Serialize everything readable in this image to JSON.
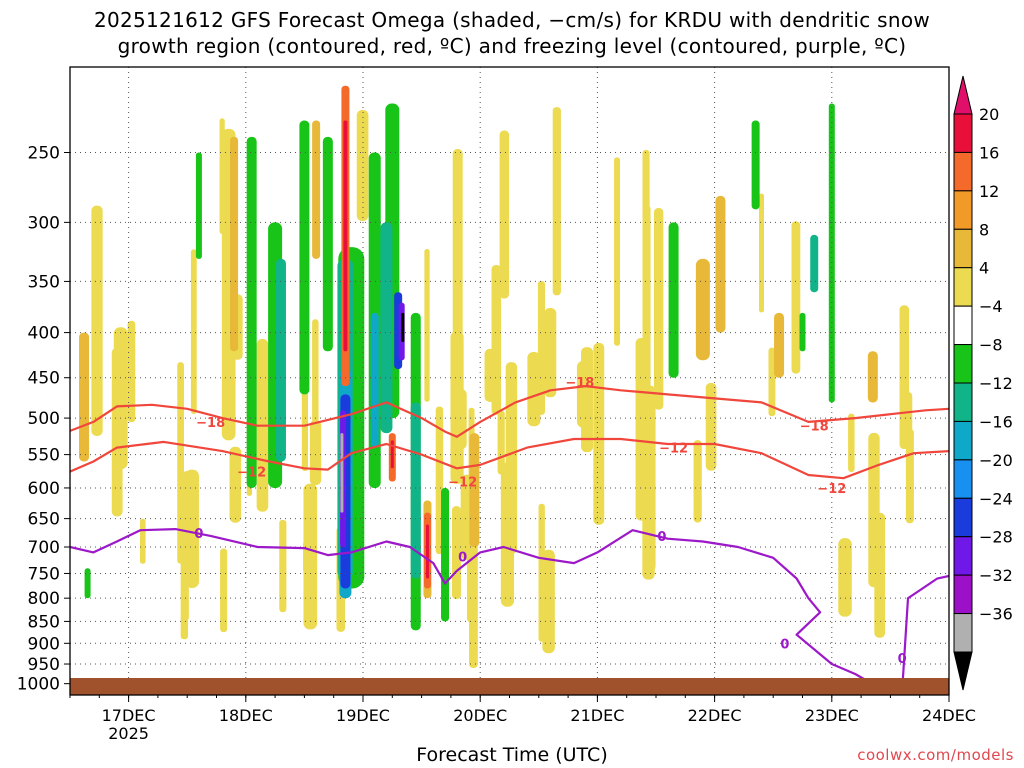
{
  "title_line1": "2025121612 GFS Forecast Omega (shaded, −cm/s) for KRDU with dendritic snow",
  "title_line2": "growth region (contoured, red, ºC) and freezing level (contoured, purple, ºC)",
  "credit": "coolwx.com/models",
  "chart_data": {
    "type": "heatmap",
    "xlabel": "Forecast Time (UTC)",
    "x_ticks": [
      "17DEC",
      "18DEC",
      "19DEC",
      "20DEC",
      "21DEC",
      "22DEC",
      "23DEC",
      "24DEC"
    ],
    "x_year_label": "2025",
    "x_range_days": [
      16.5,
      24.0
    ],
    "y_ticks": [
      250,
      300,
      350,
      400,
      450,
      500,
      550,
      600,
      650,
      700,
      750,
      800,
      850,
      900,
      950,
      1000
    ],
    "y_range_hpa": [
      200,
      1030
    ],
    "colorbar": {
      "labels": [
        "20",
        "16",
        "12",
        "8",
        "4",
        "−4",
        "−8",
        "−12",
        "−16",
        "−20",
        "−24",
        "−28",
        "−32",
        "−36"
      ],
      "colors": [
        "#e8103a",
        "#f36a2a",
        "#f29a28",
        "#e8b838",
        "#ecda50",
        "#ffffff",
        "#18c418",
        "#10b488",
        "#10a8c8",
        "#1890f0",
        "#1a3cdc",
        "#7018e8",
        "#9c10c8",
        "#b0b0b0"
      ],
      "top_arrow_color": "#e0106a",
      "bottom_arrow_color": "#000000"
    },
    "contours": {
      "red_minus18": {
        "label": "−18",
        "color": "#f0463c",
        "points": [
          [
            16.5,
            517
          ],
          [
            16.7,
            505
          ],
          [
            16.9,
            485
          ],
          [
            17.2,
            483
          ],
          [
            17.5,
            488
          ],
          [
            17.8,
            500
          ],
          [
            18.1,
            510
          ],
          [
            18.5,
            510
          ],
          [
            18.9,
            495
          ],
          [
            19.2,
            480
          ],
          [
            19.5,
            500
          ],
          [
            19.7,
            518
          ],
          [
            19.8,
            525
          ],
          [
            20.0,
            505
          ],
          [
            20.3,
            480
          ],
          [
            20.6,
            465
          ],
          [
            20.9,
            460
          ],
          [
            21.2,
            465
          ],
          [
            21.6,
            470
          ],
          [
            22.0,
            475
          ],
          [
            22.4,
            480
          ],
          [
            22.8,
            505
          ],
          [
            23.2,
            500
          ],
          [
            23.5,
            495
          ],
          [
            23.8,
            490
          ],
          [
            24.0,
            488
          ]
        ]
      },
      "red_minus12": {
        "label": "−12",
        "color": "#f0463c",
        "points": [
          [
            16.5,
            575
          ],
          [
            16.7,
            560
          ],
          [
            16.9,
            540
          ],
          [
            17.3,
            532
          ],
          [
            17.8,
            545
          ],
          [
            18.2,
            560
          ],
          [
            18.5,
            570
          ],
          [
            18.7,
            572
          ],
          [
            18.9,
            548
          ],
          [
            19.2,
            535
          ],
          [
            19.5,
            550
          ],
          [
            19.8,
            570
          ],
          [
            20.0,
            565
          ],
          [
            20.4,
            540
          ],
          [
            20.8,
            528
          ],
          [
            21.2,
            528
          ],
          [
            21.6,
            535
          ],
          [
            22.0,
            535
          ],
          [
            22.4,
            548
          ],
          [
            22.8,
            580
          ],
          [
            23.1,
            585
          ],
          [
            23.4,
            565
          ],
          [
            23.7,
            548
          ],
          [
            24.0,
            545
          ]
        ]
      },
      "freezing_0": {
        "label": "0",
        "color": "#9c18c8",
        "points": [
          [
            16.5,
            700
          ],
          [
            16.7,
            710
          ],
          [
            16.9,
            690
          ],
          [
            17.1,
            670
          ],
          [
            17.4,
            668
          ],
          [
            17.7,
            680
          ],
          [
            18.1,
            700
          ],
          [
            18.5,
            702
          ],
          [
            18.7,
            715
          ],
          [
            18.9,
            710
          ],
          [
            19.2,
            690
          ],
          [
            19.4,
            700
          ],
          [
            19.6,
            730
          ],
          [
            19.7,
            770
          ],
          [
            19.8,
            745
          ],
          [
            20.0,
            710
          ],
          [
            20.2,
            700
          ],
          [
            20.5,
            720
          ],
          [
            20.8,
            730
          ],
          [
            21.0,
            710
          ],
          [
            21.3,
            670
          ],
          [
            21.6,
            685
          ],
          [
            21.9,
            690
          ],
          [
            22.2,
            700
          ],
          [
            22.5,
            720
          ],
          [
            22.7,
            760
          ],
          [
            22.8,
            800
          ],
          [
            22.9,
            830
          ],
          [
            22.7,
            880
          ],
          [
            23.0,
            950
          ],
          [
            23.2,
            975
          ],
          [
            23.4,
            1010
          ],
          [
            23.6,
            1020
          ]
        ]
      }
    },
    "contour_label_positions": [
      [
        17.7,
        505,
        "−18"
      ],
      [
        18.05,
        575,
        "−12"
      ],
      [
        20.85,
        455,
        "−18"
      ],
      [
        19.85,
        590,
        "−12"
      ],
      [
        21.65,
        540,
        "−12"
      ],
      [
        22.85,
        510,
        "−18"
      ],
      [
        23.0,
        600,
        "−12"
      ],
      [
        17.6,
        675,
        "0"
      ],
      [
        19.85,
        718,
        "0"
      ],
      [
        21.55,
        680,
        "0"
      ],
      [
        22.6,
        900,
        "0"
      ],
      [
        23.6,
        935,
        "0"
      ]
    ]
  }
}
